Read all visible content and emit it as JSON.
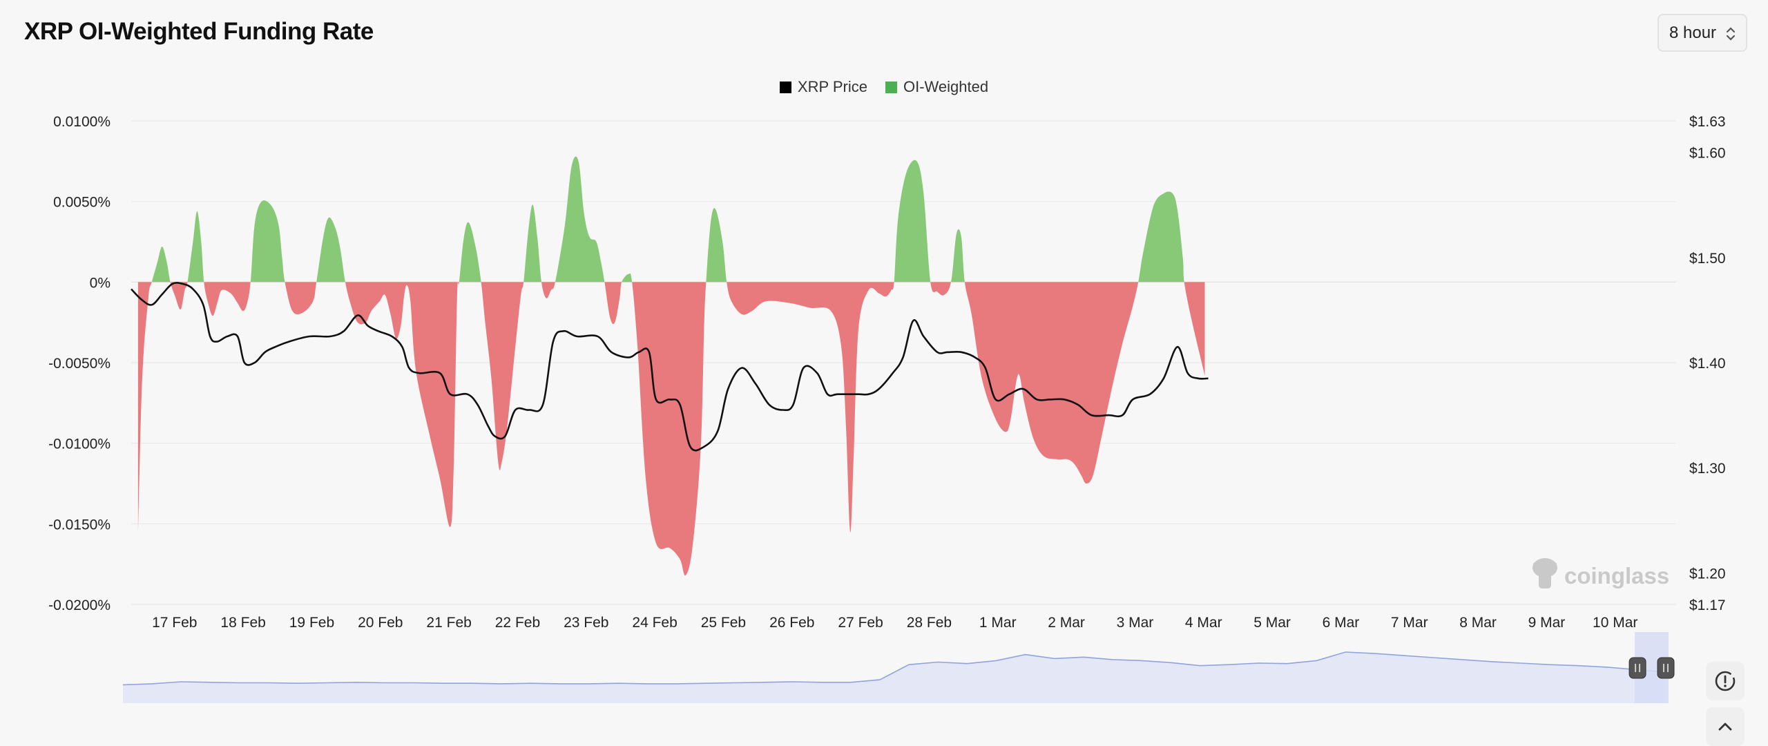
{
  "header": {
    "title": "XRP OI-Weighted Funding Rate",
    "interval_label": "8 hour"
  },
  "legend": [
    {
      "label": "XRP Price",
      "color": "#000000"
    },
    {
      "label": "OI-Weighted",
      "color": "#4caf50"
    }
  ],
  "watermark": "coinglass",
  "colors": {
    "positive_fill": "#88c977",
    "negative_fill": "#e87a7e",
    "price_line": "#111111",
    "navigator_fill": "#e3e7f6",
    "navigator_line": "#8fa3dd",
    "navigator_selection": "#d6dcf4"
  },
  "icons": {
    "interval_toggle": "chevron-up-down-icon",
    "info_button": "clock-alert-icon",
    "collapse_button": "chevron-up-icon",
    "navigator_handles": "grip-handle-icon"
  },
  "chart_data": {
    "type": "area",
    "title": "XRP OI-Weighted Funding Rate",
    "categories": [
      "17 Feb",
      "18 Feb",
      "19 Feb",
      "20 Feb",
      "21 Feb",
      "22 Feb",
      "23 Feb",
      "24 Feb",
      "25 Feb",
      "26 Feb",
      "27 Feb",
      "28 Feb",
      "1 Mar",
      "2 Mar",
      "3 Mar",
      "4 Mar",
      "5 Mar",
      "6 Mar",
      "7 Mar",
      "8 Mar",
      "9 Mar",
      "10 Mar"
    ],
    "x_range_days": [
      -0.3,
      22.1
    ],
    "y_left": {
      "ticks": [
        0.01,
        0.005,
        0,
        -0.005,
        -0.01,
        -0.015,
        -0.02
      ],
      "tick_labels": [
        "0.0100%",
        "0.0050%",
        "0%",
        "-0.0050%",
        "-0.0100%",
        "-0.0150%",
        "-0.0200%"
      ],
      "range": [
        -0.02,
        0.01
      ]
    },
    "y_right": {
      "ticks": [
        1.63,
        1.6,
        1.5,
        1.4,
        1.3,
        1.2,
        1.17
      ],
      "tick_labels": [
        "$1.63",
        "$1.60",
        "$1.50",
        "$1.40",
        "$1.30",
        "$1.20",
        "$1.17"
      ],
      "range": [
        1.17,
        1.63
      ]
    },
    "grid": true,
    "legend_position": "top-center",
    "series": [
      {
        "name": "OI-Weighted",
        "axis": "left",
        "points": [
          [
            -0.2,
            -0.0155
          ],
          [
            -0.14,
            -0.006
          ],
          [
            -0.05,
            -0.001
          ],
          [
            0.0,
            0.0
          ],
          [
            0.08,
            0.0012
          ],
          [
            0.15,
            0.0022
          ],
          [
            0.22,
            0.0012
          ],
          [
            0.27,
            0.0
          ],
          [
            0.34,
            -0.0009
          ],
          [
            0.42,
            -0.0017
          ],
          [
            0.48,
            -0.0005
          ],
          [
            0.52,
            0.0
          ],
          [
            0.6,
            0.0025
          ],
          [
            0.66,
            0.0044
          ],
          [
            0.72,
            0.0025
          ],
          [
            0.76,
            0.0
          ],
          [
            0.82,
            -0.0013
          ],
          [
            0.89,
            -0.0021
          ],
          [
            0.96,
            -0.0012
          ],
          [
            1.02,
            -0.0005
          ],
          [
            1.15,
            -0.0007
          ],
          [
            1.25,
            -0.0013
          ],
          [
            1.33,
            -0.0018
          ],
          [
            1.39,
            -0.0013
          ],
          [
            1.44,
            0.0
          ],
          [
            1.5,
            0.0036
          ],
          [
            1.6,
            0.005
          ],
          [
            1.75,
            0.0047
          ],
          [
            1.85,
            0.0035
          ],
          [
            1.9,
            0.0015
          ],
          [
            1.94,
            0.0
          ],
          [
            2.05,
            -0.0018
          ],
          [
            2.2,
            -0.0019
          ],
          [
            2.35,
            -0.0012
          ],
          [
            2.4,
            0.0
          ],
          [
            2.5,
            0.0028
          ],
          [
            2.58,
            0.004
          ],
          [
            2.68,
            0.0033
          ],
          [
            2.75,
            0.002
          ],
          [
            2.82,
            0.0
          ],
          [
            2.9,
            -0.0014
          ],
          [
            3.0,
            -0.0025
          ],
          [
            3.12,
            -0.0025
          ],
          [
            3.2,
            -0.0018
          ],
          [
            3.32,
            -0.0012
          ],
          [
            3.4,
            -0.0008
          ],
          [
            3.48,
            -0.002
          ],
          [
            3.56,
            -0.0035
          ],
          [
            3.63,
            -0.0027
          ],
          [
            3.68,
            -0.0008
          ],
          [
            3.72,
            -0.0002
          ],
          [
            3.77,
            -0.0012
          ],
          [
            3.85,
            -0.0055
          ],
          [
            4.05,
            -0.0095
          ],
          [
            4.2,
            -0.0122
          ],
          [
            4.35,
            -0.0152
          ],
          [
            4.4,
            -0.0115
          ],
          [
            4.45,
            -0.001
          ],
          [
            4.48,
            0.0
          ],
          [
            4.55,
            0.0028
          ],
          [
            4.62,
            0.0037
          ],
          [
            4.72,
            0.0022
          ],
          [
            4.8,
            0.0
          ],
          [
            4.86,
            -0.0025
          ],
          [
            4.95,
            -0.006
          ],
          [
            5.05,
            -0.0112
          ],
          [
            5.1,
            -0.0112
          ],
          [
            5.18,
            -0.009
          ],
          [
            5.3,
            -0.004
          ],
          [
            5.38,
            -0.0008
          ],
          [
            5.42,
            0.0
          ],
          [
            5.48,
            0.0028
          ],
          [
            5.55,
            0.0048
          ],
          [
            5.62,
            0.0028
          ],
          [
            5.68,
            0.0
          ],
          [
            5.75,
            -0.001
          ],
          [
            5.82,
            -0.0005
          ],
          [
            5.88,
            0.0
          ],
          [
            6.02,
            0.0035
          ],
          [
            6.12,
            0.0072
          ],
          [
            6.22,
            0.0075
          ],
          [
            6.3,
            0.0043
          ],
          [
            6.38,
            0.0028
          ],
          [
            6.48,
            0.0025
          ],
          [
            6.55,
            0.0012
          ],
          [
            6.6,
            0.0
          ],
          [
            6.68,
            -0.0022
          ],
          [
            6.75,
            -0.0025
          ],
          [
            6.82,
            -0.001
          ],
          [
            6.85,
            0.0
          ],
          [
            6.95,
            0.0005
          ],
          [
            7.0,
            0.0
          ],
          [
            7.08,
            -0.004
          ],
          [
            7.2,
            -0.0122
          ],
          [
            7.35,
            -0.0162
          ],
          [
            7.55,
            -0.0165
          ],
          [
            7.7,
            -0.0172
          ],
          [
            7.78,
            -0.0182
          ],
          [
            7.88,
            -0.0165
          ],
          [
            8.0,
            -0.0105
          ],
          [
            8.05,
            -0.003
          ],
          [
            8.08,
            0.0
          ],
          [
            8.15,
            0.0038
          ],
          [
            8.22,
            0.0045
          ],
          [
            8.32,
            0.0025
          ],
          [
            8.38,
            0.0
          ],
          [
            8.45,
            -0.0012
          ],
          [
            8.6,
            -0.002
          ],
          [
            8.75,
            -0.0018
          ],
          [
            8.95,
            -0.0012
          ],
          [
            9.3,
            -0.0013
          ],
          [
            9.6,
            -0.0016
          ],
          [
            9.9,
            -0.0018
          ],
          [
            10.05,
            -0.004
          ],
          [
            10.12,
            -0.009
          ],
          [
            10.18,
            -0.0155
          ],
          [
            10.23,
            -0.011
          ],
          [
            10.3,
            -0.003
          ],
          [
            10.45,
            -0.0005
          ],
          [
            10.6,
            -0.0007
          ],
          [
            10.7,
            -0.0009
          ],
          [
            10.78,
            -0.0005
          ],
          [
            10.82,
            0.0
          ],
          [
            10.88,
            0.004
          ],
          [
            11.0,
            0.0068
          ],
          [
            11.15,
            0.0075
          ],
          [
            11.25,
            0.0055
          ],
          [
            11.35,
            0.0
          ],
          [
            11.45,
            -0.0006
          ],
          [
            11.55,
            -0.0008
          ],
          [
            11.65,
            0.0
          ],
          [
            11.73,
            0.003
          ],
          [
            11.8,
            0.0028
          ],
          [
            11.85,
            0.0
          ],
          [
            11.95,
            -0.002
          ],
          [
            12.1,
            -0.006
          ],
          [
            12.3,
            -0.0085
          ],
          [
            12.45,
            -0.0093
          ],
          [
            12.52,
            -0.0085
          ],
          [
            12.6,
            -0.0062
          ],
          [
            12.65,
            -0.0058
          ],
          [
            12.72,
            -0.0075
          ],
          [
            12.85,
            -0.0097
          ],
          [
            13.0,
            -0.0108
          ],
          [
            13.2,
            -0.011
          ],
          [
            13.35,
            -0.011
          ],
          [
            13.45,
            -0.0113
          ],
          [
            13.55,
            -0.012
          ],
          [
            13.62,
            -0.0125
          ],
          [
            13.72,
            -0.012
          ],
          [
            13.85,
            -0.0095
          ],
          [
            14.0,
            -0.0065
          ],
          [
            14.15,
            -0.0038
          ],
          [
            14.3,
            -0.0015
          ],
          [
            14.38,
            0.0
          ],
          [
            14.45,
            0.0018
          ],
          [
            14.6,
            0.0047
          ],
          [
            14.75,
            0.0055
          ],
          [
            14.88,
            0.0055
          ],
          [
            14.95,
            0.0045
          ],
          [
            15.03,
            0.0015
          ],
          [
            15.05,
            0.0
          ],
          [
            15.15,
            -0.0022
          ],
          [
            15.35,
            -0.0058
          ]
        ]
      },
      {
        "name": "XRP Price",
        "axis": "right",
        "points": [
          [
            -0.3,
            1.47
          ],
          [
            -0.15,
            1.46
          ],
          [
            0.0,
            1.455
          ],
          [
            0.15,
            1.465
          ],
          [
            0.3,
            1.475
          ],
          [
            0.45,
            1.475
          ],
          [
            0.6,
            1.47
          ],
          [
            0.75,
            1.455
          ],
          [
            0.85,
            1.425
          ],
          [
            0.95,
            1.42
          ],
          [
            1.1,
            1.425
          ],
          [
            1.25,
            1.425
          ],
          [
            1.35,
            1.4
          ],
          [
            1.5,
            1.4
          ],
          [
            1.65,
            1.41
          ],
          [
            1.8,
            1.415
          ],
          [
            2.0,
            1.42
          ],
          [
            2.3,
            1.425
          ],
          [
            2.6,
            1.425
          ],
          [
            2.8,
            1.43
          ],
          [
            3.0,
            1.445
          ],
          [
            3.15,
            1.435
          ],
          [
            3.3,
            1.43
          ],
          [
            3.5,
            1.425
          ],
          [
            3.65,
            1.415
          ],
          [
            3.75,
            1.395
          ],
          [
            3.9,
            1.39
          ],
          [
            4.2,
            1.39
          ],
          [
            4.35,
            1.37
          ],
          [
            4.6,
            1.37
          ],
          [
            4.75,
            1.36
          ],
          [
            4.9,
            1.34
          ],
          [
            5.0,
            1.33
          ],
          [
            5.15,
            1.33
          ],
          [
            5.3,
            1.355
          ],
          [
            5.5,
            1.355
          ],
          [
            5.7,
            1.36
          ],
          [
            5.85,
            1.42
          ],
          [
            6.0,
            1.43
          ],
          [
            6.2,
            1.425
          ],
          [
            6.5,
            1.425
          ],
          [
            6.7,
            1.41
          ],
          [
            6.95,
            1.405
          ],
          [
            7.1,
            1.41
          ],
          [
            7.25,
            1.41
          ],
          [
            7.35,
            1.365
          ],
          [
            7.55,
            1.365
          ],
          [
            7.7,
            1.36
          ],
          [
            7.85,
            1.32
          ],
          [
            8.05,
            1.32
          ],
          [
            8.25,
            1.335
          ],
          [
            8.4,
            1.375
          ],
          [
            8.6,
            1.395
          ],
          [
            8.8,
            1.38
          ],
          [
            9.0,
            1.36
          ],
          [
            9.2,
            1.355
          ],
          [
            9.35,
            1.36
          ],
          [
            9.5,
            1.395
          ],
          [
            9.7,
            1.39
          ],
          [
            9.85,
            1.37
          ],
          [
            10.0,
            1.37
          ],
          [
            10.3,
            1.37
          ],
          [
            10.45,
            1.37
          ],
          [
            10.6,
            1.375
          ],
          [
            10.8,
            1.39
          ],
          [
            10.95,
            1.405
          ],
          [
            11.1,
            1.44
          ],
          [
            11.25,
            1.425
          ],
          [
            11.45,
            1.41
          ],
          [
            11.6,
            1.41
          ],
          [
            11.8,
            1.41
          ],
          [
            12.0,
            1.405
          ],
          [
            12.15,
            1.395
          ],
          [
            12.3,
            1.365
          ],
          [
            12.5,
            1.37
          ],
          [
            12.7,
            1.375
          ],
          [
            12.9,
            1.365
          ],
          [
            13.1,
            1.365
          ],
          [
            13.3,
            1.365
          ],
          [
            13.5,
            1.36
          ],
          [
            13.7,
            1.35
          ],
          [
            13.95,
            1.35
          ],
          [
            14.15,
            1.35
          ],
          [
            14.3,
            1.365
          ],
          [
            14.55,
            1.37
          ],
          [
            14.75,
            1.385
          ],
          [
            14.95,
            1.415
          ],
          [
            15.1,
            1.39
          ],
          [
            15.25,
            1.385
          ],
          [
            15.4,
            1.385
          ]
        ]
      }
    ],
    "navigator": {
      "range_fraction": [
        0.0,
        1.0
      ],
      "selection_fraction": [
        0.979,
        1.0
      ],
      "levels": [
        0.2,
        0.22,
        0.26,
        0.25,
        0.24,
        0.24,
        0.23,
        0.24,
        0.25,
        0.24,
        0.24,
        0.23,
        0.23,
        0.22,
        0.23,
        0.22,
        0.22,
        0.23,
        0.22,
        0.22,
        0.23,
        0.24,
        0.25,
        0.26,
        0.25,
        0.25,
        0.3,
        0.6,
        0.65,
        0.62,
        0.68,
        0.8,
        0.72,
        0.75,
        0.7,
        0.68,
        0.64,
        0.58,
        0.6,
        0.63,
        0.62,
        0.68,
        0.85,
        0.82,
        0.78,
        0.74,
        0.7,
        0.66,
        0.63,
        0.6,
        0.58,
        0.55,
        0.5,
        0.45
      ]
    }
  }
}
